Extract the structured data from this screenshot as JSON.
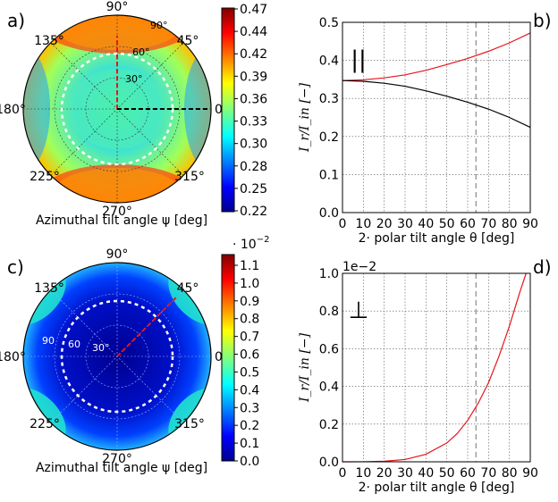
{
  "panels": {
    "a": "a)",
    "b": "b)",
    "c": "c)",
    "d": "d)"
  },
  "polar_top": {
    "angle_labels": [
      "90°",
      "45°",
      "0°",
      "315°",
      "270°",
      "225°",
      "180°",
      "135°"
    ],
    "radial_labels": [
      "90°",
      "60°",
      "30°"
    ],
    "xlabel": "Azimuthal tilt angle ψ [deg]",
    "colorbar_ticks": [
      "0.47",
      "0.44",
      "0.42",
      "0.39",
      "0.36",
      "0.33",
      "0.30",
      "0.28",
      "0.25",
      "0.22"
    ],
    "colorbar_range": [
      0.22,
      0.47
    ]
  },
  "polar_bottom": {
    "angle_labels": [
      "90°",
      "45°",
      "0°",
      "315°",
      "270°",
      "225°",
      "180°",
      "135°"
    ],
    "radial_labels": [
      "90",
      "60",
      "30°"
    ],
    "xlabel": "Azimuthal tilt angle ψ [deg]",
    "colorbar_ticks": [
      "1.1",
      "1.0",
      "0.9",
      "0.8",
      "0.7",
      "0.6",
      "0.5",
      "0.4",
      "0.3",
      "0.2",
      "0.1",
      "0.0"
    ],
    "colorbar_exponent": "· 10",
    "colorbar_exponent_power": "−2",
    "colorbar_range": [
      0.0,
      1.15
    ]
  },
  "chart_data": [
    {
      "type": "line",
      "panel": "b",
      "annotation": "||",
      "xlabel": "2· polar tilt angle θ [deg]",
      "ylabel": "I_r/I_in [−]",
      "xlim": [
        0,
        90
      ],
      "ylim": [
        0.0,
        0.5
      ],
      "xticks": [
        "0",
        "10",
        "20",
        "30",
        "40",
        "50",
        "60",
        "70",
        "80",
        "90"
      ],
      "yticks": [
        "0.0",
        "0.1",
        "0.2",
        "0.3",
        "0.4",
        "0.5"
      ],
      "grid": true,
      "vline_x": 64,
      "x": [
        0,
        10,
        20,
        30,
        40,
        50,
        60,
        70,
        80,
        90
      ],
      "series": [
        {
          "color": "#e8141c",
          "values": [
            0.347,
            0.349,
            0.354,
            0.362,
            0.374,
            0.389,
            0.405,
            0.424,
            0.446,
            0.472
          ]
        },
        {
          "color": "#000000",
          "values": [
            0.347,
            0.345,
            0.34,
            0.332,
            0.32,
            0.306,
            0.29,
            0.272,
            0.25,
            0.224
          ]
        }
      ]
    },
    {
      "type": "line",
      "panel": "d",
      "annotation": "⊥",
      "scale_note": "1e−2",
      "xlabel": "2· polar tilt angle θ [deg]",
      "ylabel": "I_r/I_in [−]",
      "xlim": [
        0,
        90
      ],
      "ylim": [
        0.0,
        1.0
      ],
      "xticks": [
        "0",
        "10",
        "20",
        "30",
        "40",
        "50",
        "60",
        "70",
        "80",
        "90"
      ],
      "yticks": [
        "0.0",
        "0.2",
        "0.4",
        "0.6",
        "0.8",
        "1.0"
      ],
      "grid": true,
      "vline_x": 64,
      "x": [
        0,
        10,
        20,
        30,
        40,
        50,
        55,
        60,
        65,
        70,
        75,
        80,
        85,
        88
      ],
      "series": [
        {
          "color": "#e8141c",
          "values": [
            0.0,
            0.0002,
            0.003,
            0.012,
            0.04,
            0.1,
            0.15,
            0.22,
            0.31,
            0.42,
            0.56,
            0.72,
            0.9,
            1.0
          ]
        }
      ]
    }
  ]
}
